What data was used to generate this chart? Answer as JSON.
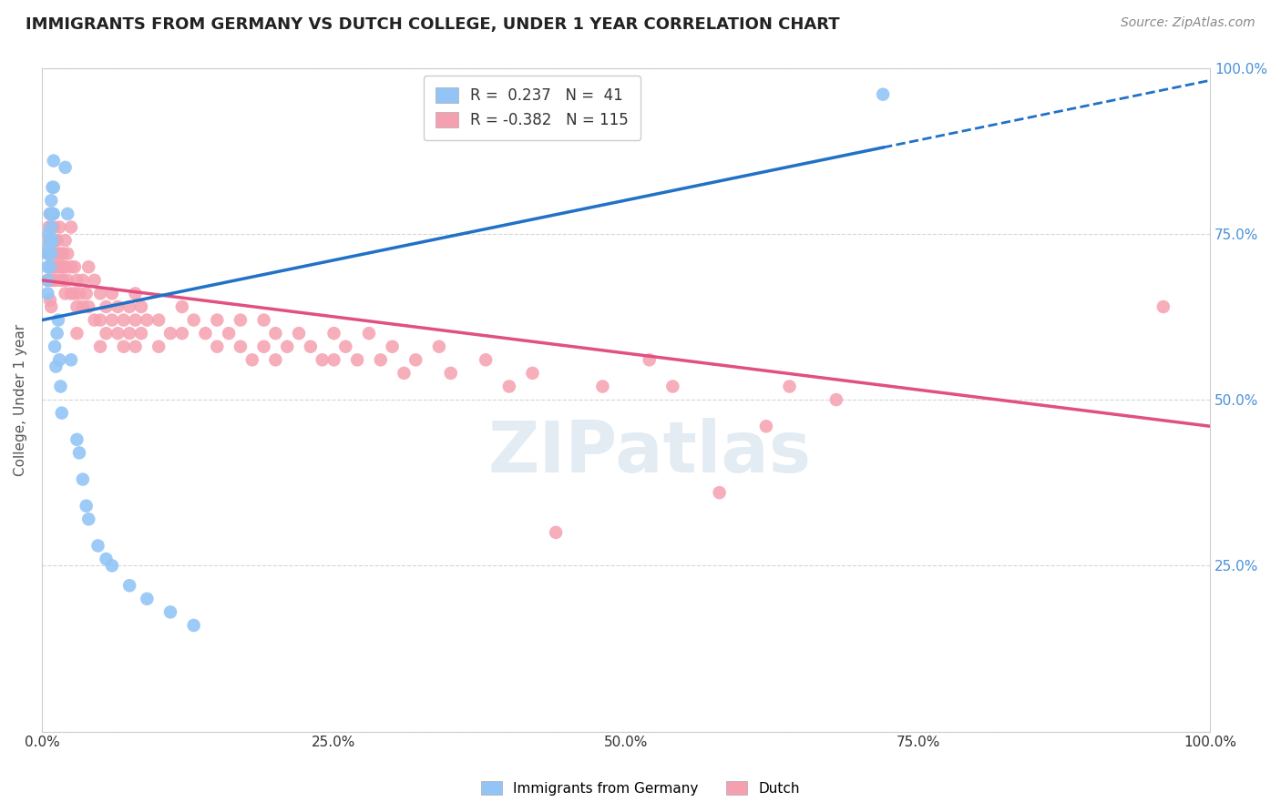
{
  "title": "IMMIGRANTS FROM GERMANY VS DUTCH COLLEGE, UNDER 1 YEAR CORRELATION CHART",
  "source": "Source: ZipAtlas.com",
  "ylabel": "College, Under 1 year",
  "xlabel": "",
  "xlim": [
    0.0,
    1.0
  ],
  "ylim": [
    0.0,
    1.0
  ],
  "ytick_labels": [
    "",
    "25.0%",
    "50.0%",
    "75.0%",
    "100.0%"
  ],
  "ytick_values": [
    0.0,
    0.25,
    0.5,
    0.75,
    1.0
  ],
  "xtick_labels": [
    "0.0%",
    "25.0%",
    "50.0%",
    "75.0%",
    "100.0%"
  ],
  "xtick_values": [
    0.0,
    0.25,
    0.5,
    0.75,
    1.0
  ],
  "blue_R": 0.237,
  "blue_N": 41,
  "pink_R": -0.382,
  "pink_N": 115,
  "blue_color": "#92c5f5",
  "pink_color": "#f5a0b0",
  "blue_line_color": "#2171c7",
  "pink_line_color": "#e05080",
  "blue_scatter": [
    [
      0.005,
      0.72
    ],
    [
      0.005,
      0.7
    ],
    [
      0.005,
      0.68
    ],
    [
      0.005,
      0.66
    ],
    [
      0.006,
      0.75
    ],
    [
      0.006,
      0.73
    ],
    [
      0.007,
      0.78
    ],
    [
      0.007,
      0.74
    ],
    [
      0.007,
      0.7
    ],
    [
      0.008,
      0.8
    ],
    [
      0.008,
      0.76
    ],
    [
      0.008,
      0.72
    ],
    [
      0.009,
      0.82
    ],
    [
      0.009,
      0.78
    ],
    [
      0.009,
      0.74
    ],
    [
      0.01,
      0.86
    ],
    [
      0.01,
      0.82
    ],
    [
      0.01,
      0.78
    ],
    [
      0.011,
      0.58
    ],
    [
      0.012,
      0.55
    ],
    [
      0.013,
      0.6
    ],
    [
      0.014,
      0.62
    ],
    [
      0.015,
      0.56
    ],
    [
      0.016,
      0.52
    ],
    [
      0.017,
      0.48
    ],
    [
      0.02,
      0.85
    ],
    [
      0.022,
      0.78
    ],
    [
      0.025,
      0.56
    ],
    [
      0.03,
      0.44
    ],
    [
      0.032,
      0.42
    ],
    [
      0.035,
      0.38
    ],
    [
      0.038,
      0.34
    ],
    [
      0.04,
      0.32
    ],
    [
      0.048,
      0.28
    ],
    [
      0.055,
      0.26
    ],
    [
      0.06,
      0.25
    ],
    [
      0.075,
      0.22
    ],
    [
      0.09,
      0.2
    ],
    [
      0.11,
      0.18
    ],
    [
      0.13,
      0.16
    ],
    [
      0.72,
      0.96
    ]
  ],
  "pink_scatter": [
    [
      0.005,
      0.74
    ],
    [
      0.005,
      0.72
    ],
    [
      0.005,
      0.68
    ],
    [
      0.006,
      0.76
    ],
    [
      0.006,
      0.72
    ],
    [
      0.006,
      0.68
    ],
    [
      0.007,
      0.78
    ],
    [
      0.007,
      0.74
    ],
    [
      0.007,
      0.7
    ],
    [
      0.007,
      0.65
    ],
    [
      0.008,
      0.76
    ],
    [
      0.008,
      0.72
    ],
    [
      0.008,
      0.68
    ],
    [
      0.008,
      0.64
    ],
    [
      0.009,
      0.78
    ],
    [
      0.009,
      0.74
    ],
    [
      0.009,
      0.7
    ],
    [
      0.01,
      0.76
    ],
    [
      0.01,
      0.72
    ],
    [
      0.01,
      0.68
    ],
    [
      0.011,
      0.74
    ],
    [
      0.011,
      0.7
    ],
    [
      0.012,
      0.72
    ],
    [
      0.012,
      0.68
    ],
    [
      0.013,
      0.74
    ],
    [
      0.013,
      0.7
    ],
    [
      0.014,
      0.72
    ],
    [
      0.015,
      0.76
    ],
    [
      0.015,
      0.7
    ],
    [
      0.016,
      0.72
    ],
    [
      0.016,
      0.68
    ],
    [
      0.017,
      0.7
    ],
    [
      0.018,
      0.72
    ],
    [
      0.018,
      0.68
    ],
    [
      0.019,
      0.7
    ],
    [
      0.02,
      0.74
    ],
    [
      0.02,
      0.7
    ],
    [
      0.02,
      0.66
    ],
    [
      0.022,
      0.72
    ],
    [
      0.022,
      0.68
    ],
    [
      0.025,
      0.76
    ],
    [
      0.025,
      0.7
    ],
    [
      0.025,
      0.66
    ],
    [
      0.028,
      0.7
    ],
    [
      0.028,
      0.66
    ],
    [
      0.03,
      0.68
    ],
    [
      0.03,
      0.64
    ],
    [
      0.03,
      0.6
    ],
    [
      0.032,
      0.66
    ],
    [
      0.035,
      0.68
    ],
    [
      0.035,
      0.64
    ],
    [
      0.038,
      0.66
    ],
    [
      0.04,
      0.7
    ],
    [
      0.04,
      0.64
    ],
    [
      0.045,
      0.68
    ],
    [
      0.045,
      0.62
    ],
    [
      0.05,
      0.66
    ],
    [
      0.05,
      0.62
    ],
    [
      0.05,
      0.58
    ],
    [
      0.055,
      0.64
    ],
    [
      0.055,
      0.6
    ],
    [
      0.06,
      0.66
    ],
    [
      0.06,
      0.62
    ],
    [
      0.065,
      0.64
    ],
    [
      0.065,
      0.6
    ],
    [
      0.07,
      0.62
    ],
    [
      0.07,
      0.58
    ],
    [
      0.075,
      0.64
    ],
    [
      0.075,
      0.6
    ],
    [
      0.08,
      0.66
    ],
    [
      0.08,
      0.62
    ],
    [
      0.08,
      0.58
    ],
    [
      0.085,
      0.64
    ],
    [
      0.085,
      0.6
    ],
    [
      0.09,
      0.62
    ],
    [
      0.1,
      0.58
    ],
    [
      0.1,
      0.62
    ],
    [
      0.11,
      0.6
    ],
    [
      0.12,
      0.64
    ],
    [
      0.12,
      0.6
    ],
    [
      0.13,
      0.62
    ],
    [
      0.14,
      0.6
    ],
    [
      0.15,
      0.62
    ],
    [
      0.15,
      0.58
    ],
    [
      0.16,
      0.6
    ],
    [
      0.17,
      0.62
    ],
    [
      0.17,
      0.58
    ],
    [
      0.18,
      0.56
    ],
    [
      0.19,
      0.62
    ],
    [
      0.19,
      0.58
    ],
    [
      0.2,
      0.6
    ],
    [
      0.2,
      0.56
    ],
    [
      0.21,
      0.58
    ],
    [
      0.22,
      0.6
    ],
    [
      0.23,
      0.58
    ],
    [
      0.24,
      0.56
    ],
    [
      0.25,
      0.6
    ],
    [
      0.25,
      0.56
    ],
    [
      0.26,
      0.58
    ],
    [
      0.27,
      0.56
    ],
    [
      0.28,
      0.6
    ],
    [
      0.29,
      0.56
    ],
    [
      0.3,
      0.58
    ],
    [
      0.31,
      0.54
    ],
    [
      0.32,
      0.56
    ],
    [
      0.34,
      0.58
    ],
    [
      0.35,
      0.54
    ],
    [
      0.38,
      0.56
    ],
    [
      0.4,
      0.52
    ],
    [
      0.42,
      0.54
    ],
    [
      0.44,
      0.3
    ],
    [
      0.48,
      0.52
    ],
    [
      0.52,
      0.56
    ],
    [
      0.54,
      0.52
    ],
    [
      0.58,
      0.36
    ],
    [
      0.62,
      0.46
    ],
    [
      0.64,
      0.52
    ],
    [
      0.68,
      0.5
    ],
    [
      0.96,
      0.64
    ]
  ],
  "watermark": "ZIPatlas",
  "background_color": "#ffffff",
  "grid_color": "#cccccc"
}
